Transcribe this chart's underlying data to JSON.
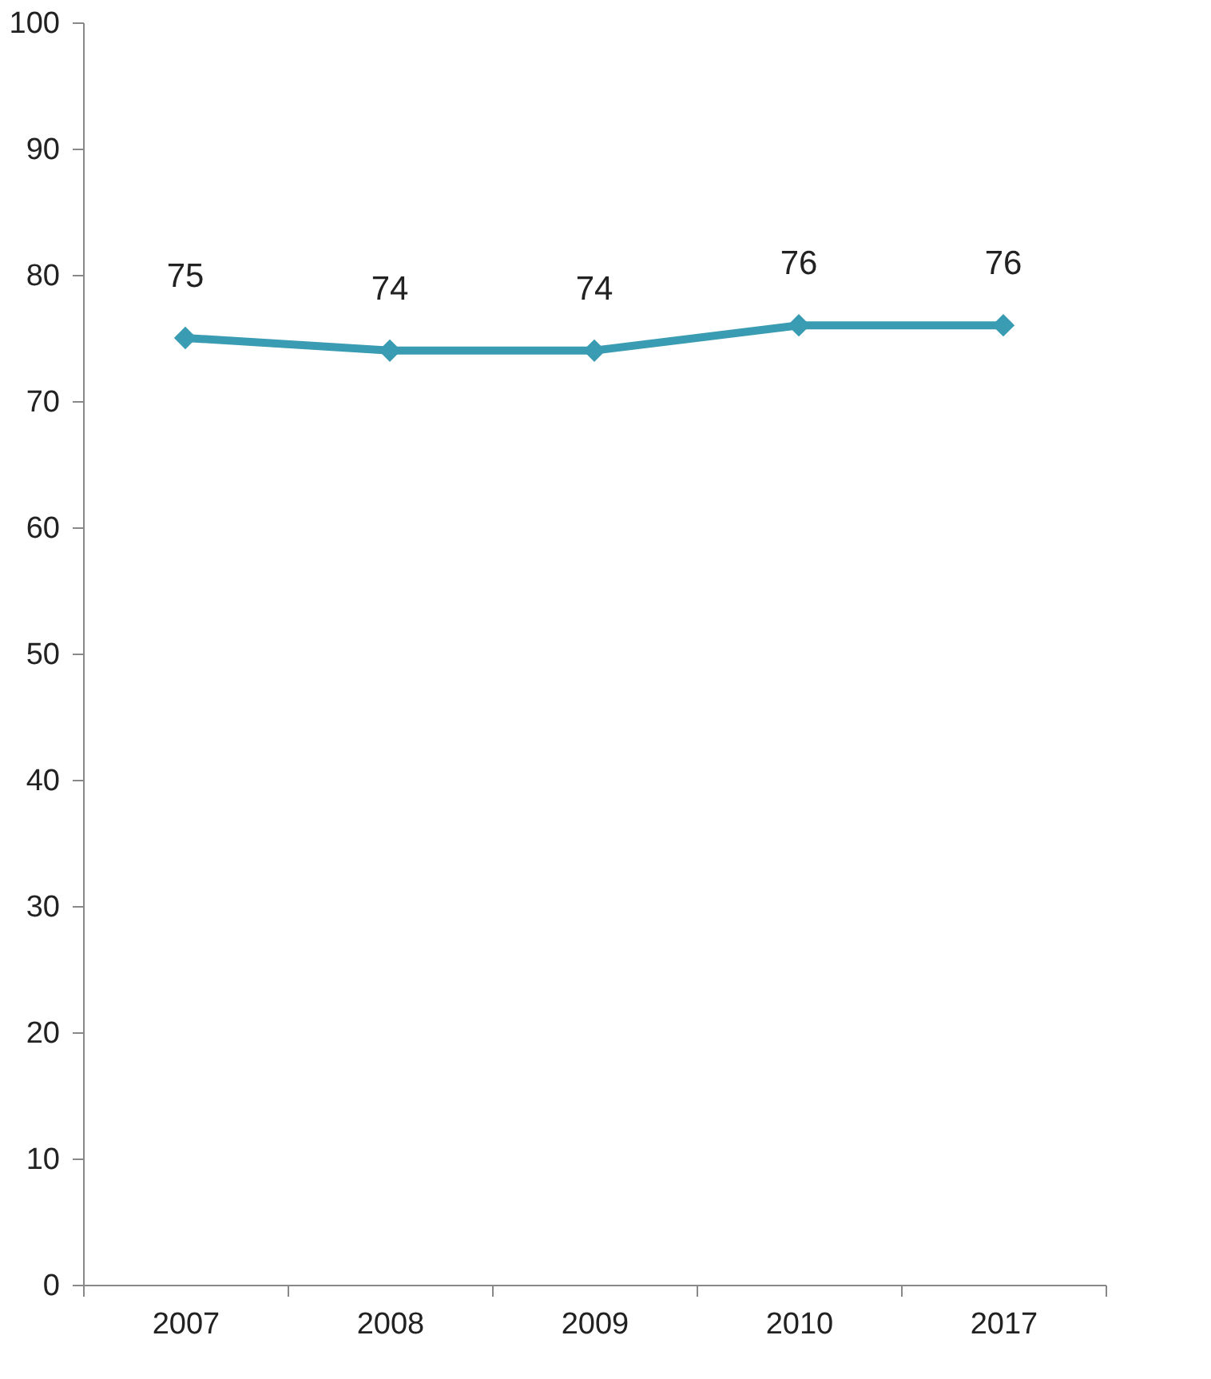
{
  "chart_data": {
    "type": "line",
    "categories": [
      "2007",
      "2008",
      "2009",
      "2010",
      "2017"
    ],
    "series": [
      {
        "color": "#3a9cb2",
        "values": [
          75,
          74,
          74,
          76,
          76
        ]
      }
    ],
    "ylim": [
      0,
      100
    ],
    "yticks": [
      0,
      10,
      20,
      30,
      40,
      50,
      60,
      70,
      80,
      90,
      100
    ],
    "grid": false,
    "marker": "diamond",
    "line_style": "solid",
    "data_labels": true
  }
}
